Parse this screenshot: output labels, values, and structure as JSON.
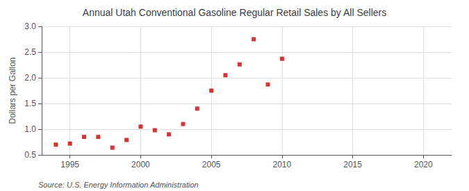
{
  "chart_data": {
    "type": "scatter",
    "title": "Annual Utah Conventional Gasoline Regular Retail Sales by All Sellers",
    "ylabel": "Dollars per Gallon",
    "annotations": [
      "Source: U.S. Energy Information Administration"
    ],
    "x": [
      1994,
      1995,
      1996,
      1997,
      1998,
      1999,
      2000,
      2001,
      2002,
      2003,
      2004,
      2005,
      2006,
      2007,
      2008,
      2009,
      2010
    ],
    "values": [
      0.7,
      0.72,
      0.85,
      0.85,
      0.64,
      0.79,
      1.05,
      0.98,
      0.9,
      1.1,
      1.4,
      1.75,
      2.05,
      2.26,
      2.75,
      1.87,
      2.37
    ],
    "color": "#cc0000",
    "marker": "square",
    "xlim": [
      1993,
      2022
    ],
    "xticks": [
      1995,
      2000,
      2005,
      2010,
      2015,
      2020
    ],
    "ylim": [
      0.5,
      3.0
    ],
    "yticks": [
      0.5,
      {
        "value": 1.0,
        "label": "1.0"
      },
      1.5,
      {
        "value": 2.0,
        "label": "2.0"
      },
      2.5,
      {
        "value": 3.0,
        "label": "3.0"
      }
    ],
    "grid": true
  }
}
